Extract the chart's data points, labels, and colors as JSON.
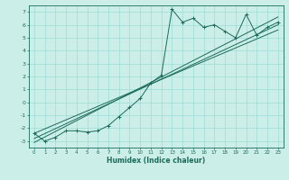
{
  "title": "",
  "xlabel": "Humidex (Indice chaleur)",
  "bg_color": "#cceee8",
  "grid_color": "#99ddd5",
  "line_color": "#1a6b5a",
  "xlim": [
    -0.5,
    23.5
  ],
  "ylim": [
    -3.5,
    7.5
  ],
  "xticks": [
    0,
    1,
    2,
    3,
    4,
    5,
    6,
    7,
    8,
    9,
    10,
    11,
    12,
    13,
    14,
    15,
    16,
    17,
    18,
    19,
    20,
    21,
    22,
    23
  ],
  "yticks": [
    -3,
    -2,
    -1,
    0,
    1,
    2,
    3,
    4,
    5,
    6,
    7
  ],
  "scatter_x": [
    0,
    1,
    2,
    3,
    4,
    5,
    6,
    7,
    8,
    9,
    10,
    11,
    12,
    13,
    14,
    15,
    16,
    17,
    18,
    19,
    20,
    21,
    22,
    23
  ],
  "scatter_y": [
    -2.4,
    -3.0,
    -2.7,
    -2.2,
    -2.2,
    -2.3,
    -2.2,
    -1.8,
    -1.1,
    -0.4,
    0.3,
    1.5,
    2.1,
    7.2,
    6.2,
    6.5,
    5.8,
    6.0,
    5.5,
    5.0,
    6.8,
    5.2,
    5.8,
    6.2
  ],
  "line1_x": [
    0,
    23
  ],
  "line1_y": [
    -2.8,
    6.0
  ],
  "line2_x": [
    0,
    23
  ],
  "line2_y": [
    -2.4,
    5.6
  ],
  "line3_x": [
    0,
    23
  ],
  "line3_y": [
    -3.1,
    6.6
  ]
}
